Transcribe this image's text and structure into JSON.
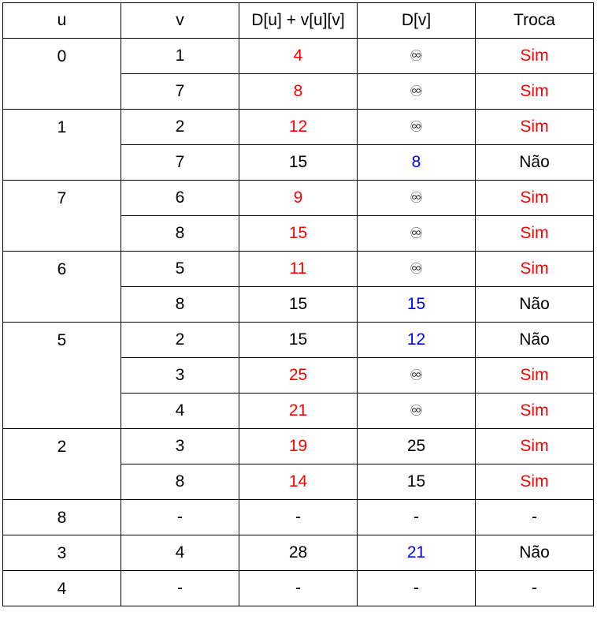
{
  "colors": {
    "red": "#ff0000",
    "blue": "#0000ff",
    "black": "#000000"
  },
  "headers": [
    "u",
    "v",
    "D[u] + v[u][v]",
    "D[v]",
    "Troca"
  ],
  "groups": [
    {
      "u": "0",
      "rows": [
        {
          "v": "1",
          "sum": "4",
          "sum_color": "red",
          "dv": "♾",
          "dv_color": "black",
          "troca": "Sim",
          "troca_color": "red"
        },
        {
          "v": "7",
          "sum": "8",
          "sum_color": "red",
          "dv": "♾",
          "dv_color": "black",
          "troca": "Sim",
          "troca_color": "red"
        }
      ]
    },
    {
      "u": "1",
      "rows": [
        {
          "v": "2",
          "sum": "12",
          "sum_color": "red",
          "dv": "♾",
          "dv_color": "black",
          "troca": "Sim",
          "troca_color": "red"
        },
        {
          "v": "7",
          "sum": "15",
          "sum_color": "black",
          "dv": "8",
          "dv_color": "blue",
          "troca": "Não",
          "troca_color": "black"
        }
      ]
    },
    {
      "u": "7",
      "rows": [
        {
          "v": "6",
          "sum": "9",
          "sum_color": "red",
          "dv": "♾",
          "dv_color": "black",
          "troca": "Sim",
          "troca_color": "red"
        },
        {
          "v": "8",
          "sum": "15",
          "sum_color": "red",
          "dv": "♾",
          "dv_color": "black",
          "troca": "Sim",
          "troca_color": "red"
        }
      ]
    },
    {
      "u": "6",
      "rows": [
        {
          "v": "5",
          "sum": "11",
          "sum_color": "red",
          "dv": "♾",
          "dv_color": "black",
          "troca": "Sim",
          "troca_color": "red"
        },
        {
          "v": "8",
          "sum": "15",
          "sum_color": "black",
          "dv": "15",
          "dv_color": "blue",
          "troca": "Não",
          "troca_color": "black"
        }
      ]
    },
    {
      "u": "5",
      "rows": [
        {
          "v": "2",
          "sum": "15",
          "sum_color": "black",
          "dv": "12",
          "dv_color": "blue",
          "troca": "Não",
          "troca_color": "black"
        },
        {
          "v": "3",
          "sum": "25",
          "sum_color": "red",
          "dv": "♾",
          "dv_color": "black",
          "troca": "Sim",
          "troca_color": "red"
        },
        {
          "v": "4",
          "sum": "21",
          "sum_color": "red",
          "dv": "♾",
          "dv_color": "black",
          "troca": "Sim",
          "troca_color": "red"
        }
      ]
    },
    {
      "u": "2",
      "rows": [
        {
          "v": "3",
          "sum": "19",
          "sum_color": "red",
          "dv": "25",
          "dv_color": "black",
          "troca": "Sim",
          "troca_color": "red"
        },
        {
          "v": "8",
          "sum": "14",
          "sum_color": "red",
          "dv": "15",
          "dv_color": "black",
          "troca": "Sim",
          "troca_color": "red"
        }
      ]
    },
    {
      "u": "8",
      "rows": [
        {
          "v": "-",
          "sum": "-",
          "sum_color": "black",
          "dv": "-",
          "dv_color": "black",
          "troca": "-",
          "troca_color": "black"
        }
      ]
    },
    {
      "u": "3",
      "rows": [
        {
          "v": "4",
          "sum": "28",
          "sum_color": "black",
          "dv": "21",
          "dv_color": "blue",
          "troca": "Não",
          "troca_color": "black"
        }
      ]
    },
    {
      "u": "4",
      "rows": [
        {
          "v": "-",
          "sum": "-",
          "sum_color": "black",
          "dv": "-",
          "dv_color": "black",
          "troca": "-",
          "troca_color": "black"
        }
      ]
    }
  ]
}
